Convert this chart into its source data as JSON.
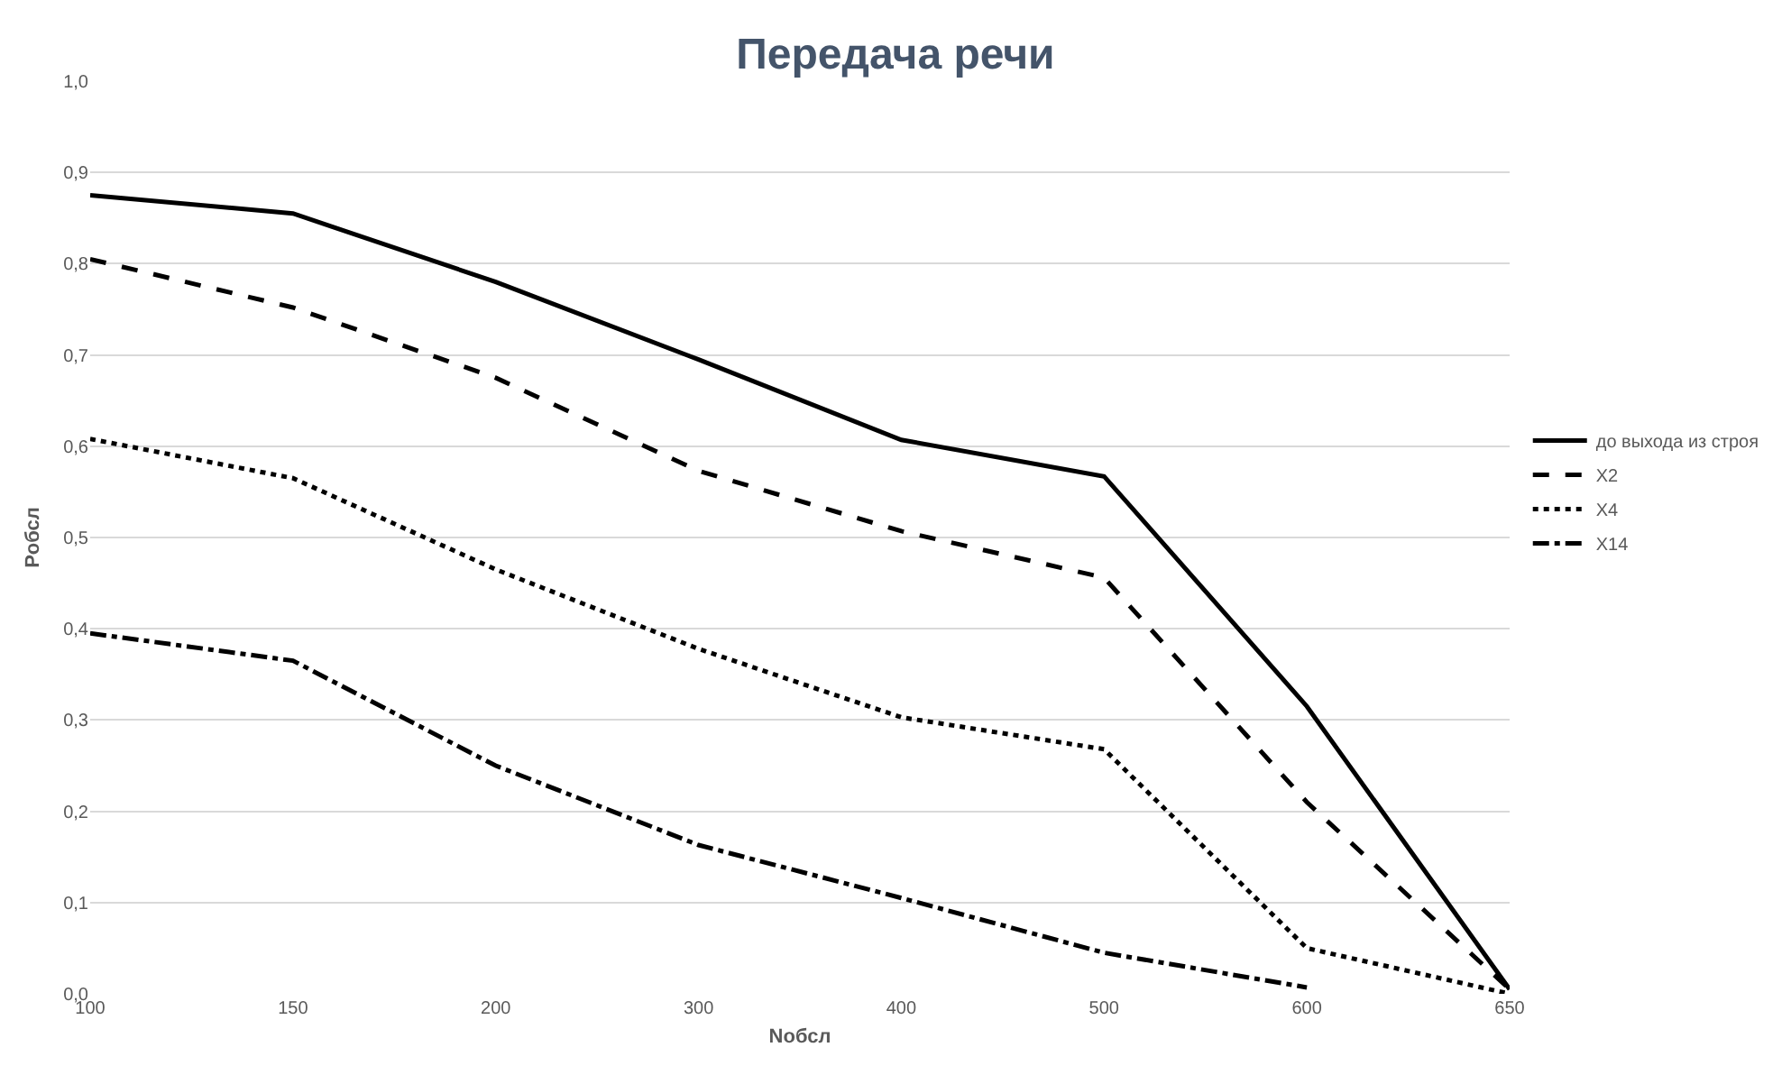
{
  "chart_data": {
    "type": "line",
    "title": "Передача речи",
    "xlabel": "Nобсл",
    "ylabel": "Pобсл",
    "categories": [
      "100",
      "150",
      "200",
      "300",
      "400",
      "500",
      "600",
      "650"
    ],
    "series": [
      {
        "name": "до выхода из строя",
        "color": "#000000",
        "line_style": "solid",
        "values": [
          0.875,
          0.855,
          0.78,
          0.695,
          0.607,
          0.567,
          0.315,
          0.005
        ]
      },
      {
        "name": "X2",
        "color": "#000000",
        "line_style": "dashed",
        "values": [
          0.805,
          0.752,
          0.675,
          0.573,
          0.507,
          0.456,
          0.21,
          0.005
        ]
      },
      {
        "name": "X4",
        "color": "#000000",
        "line_style": "dotted",
        "values": [
          0.608,
          0.565,
          0.465,
          0.378,
          0.303,
          0.268,
          0.05,
          0.0
        ]
      },
      {
        "name": "X14",
        "color": "#000000",
        "line_style": "dashdot",
        "values": [
          0.395,
          0.365,
          0.25,
          0.163,
          0.105,
          0.045,
          0.007,
          null
        ]
      }
    ],
    "ylim": [
      0,
      1
    ],
    "yticks": [
      {
        "value": 0,
        "label": "0,0"
      },
      {
        "value": 0.1,
        "label": "0,1"
      },
      {
        "value": 0.2,
        "label": "0,2"
      },
      {
        "value": 0.3,
        "label": "0,3"
      },
      {
        "value": 0.4,
        "label": "0,4"
      },
      {
        "value": 0.5,
        "label": "0,5"
      },
      {
        "value": 0.6,
        "label": "0,6"
      },
      {
        "value": 0.7,
        "label": "0,7"
      },
      {
        "value": 0.8,
        "label": "0,8"
      },
      {
        "value": 0.9,
        "label": "0,9"
      },
      {
        "value": 1,
        "label": "1,0"
      }
    ],
    "grid": "y",
    "legend": "right"
  }
}
